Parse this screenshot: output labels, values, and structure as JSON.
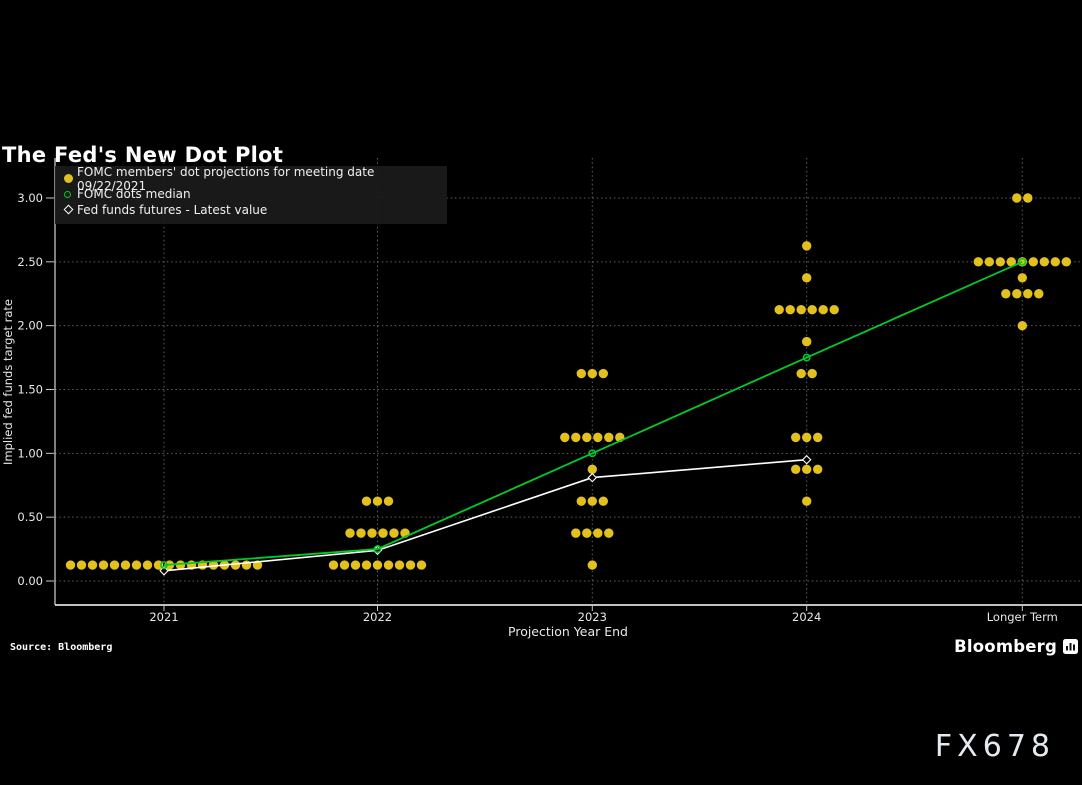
{
  "header": {
    "title": "The Fed's New Dot Plot"
  },
  "footer": {
    "source": "Source: Bloomberg",
    "brand": "Bloomberg"
  },
  "watermark": "FX678",
  "chart_data": {
    "type": "scatter",
    "title": "The Fed's New Dot Plot",
    "xlabel": "Projection Year End",
    "ylabel": "Implied fed funds target rate",
    "categories": [
      "2021",
      "2022",
      "2023",
      "2024",
      "Longer Term"
    ],
    "y_ticks": [
      0.0,
      0.5,
      1.0,
      1.5,
      2.0,
      2.5,
      3.0
    ],
    "y_tick_labels": [
      "0.00",
      "0.50",
      "1.00",
      "1.50",
      "2.00",
      "2.50",
      "3.00"
    ],
    "ylim": [
      -0.19,
      3.3
    ],
    "grid": true,
    "legend_position": "top-left",
    "colors": {
      "background": "#000000",
      "dots": "#e2c01d",
      "median_line": "#00cb27",
      "futures_line": "#ffffff",
      "grid": "#5f5f5f",
      "axis": "#ffffff",
      "tick": "#c8c8c8",
      "text": "#e8e8e8",
      "legend_background": "#1a1a1a"
    },
    "series": [
      {
        "name": "FOMC members' dot projections for meeting date 09/22/2021",
        "type": "dot-cluster",
        "clusters": [
          {
            "category": "2021",
            "rows": [
              {
                "value": 0.125,
                "count": 18
              }
            ]
          },
          {
            "category": "2022",
            "rows": [
              {
                "value": 0.625,
                "count": 3
              },
              {
                "value": 0.375,
                "count": 6
              },
              {
                "value": 0.125,
                "count": 9
              }
            ]
          },
          {
            "category": "2023",
            "rows": [
              {
                "value": 1.625,
                "count": 3
              },
              {
                "value": 1.125,
                "count": 6
              },
              {
                "value": 0.875,
                "count": 1
              },
              {
                "value": 0.625,
                "count": 3
              },
              {
                "value": 0.375,
                "count": 4
              },
              {
                "value": 0.125,
                "count": 1
              }
            ]
          },
          {
            "category": "2024",
            "rows": [
              {
                "value": 2.625,
                "count": 1
              },
              {
                "value": 2.375,
                "count": 1
              },
              {
                "value": 2.125,
                "count": 6
              },
              {
                "value": 1.875,
                "count": 1
              },
              {
                "value": 1.625,
                "count": 2
              },
              {
                "value": 1.125,
                "count": 3
              },
              {
                "value": 0.875,
                "count": 3
              },
              {
                "value": 0.625,
                "count": 1
              }
            ]
          },
          {
            "category": "Longer Term",
            "rows": [
              {
                "value": 3.0,
                "count": 2
              },
              {
                "value": 2.5,
                "count": 9
              },
              {
                "value": 2.375,
                "count": 1
              },
              {
                "value": 2.25,
                "count": 4
              },
              {
                "value": 2.0,
                "count": 1
              }
            ]
          }
        ]
      },
      {
        "name": "FOMC dots median",
        "type": "line",
        "marker": "open-circle",
        "x": [
          "2021",
          "2022",
          "2023",
          "2024",
          "Longer Term"
        ],
        "values": [
          0.125,
          0.25,
          1.0,
          1.75,
          2.5
        ]
      },
      {
        "name": "Fed funds futures - Latest value",
        "type": "line",
        "marker": "open-diamond",
        "x": [
          "2021",
          "2022",
          "2023",
          "2024"
        ],
        "values": [
          0.08,
          0.24,
          0.81,
          0.95
        ]
      }
    ]
  }
}
